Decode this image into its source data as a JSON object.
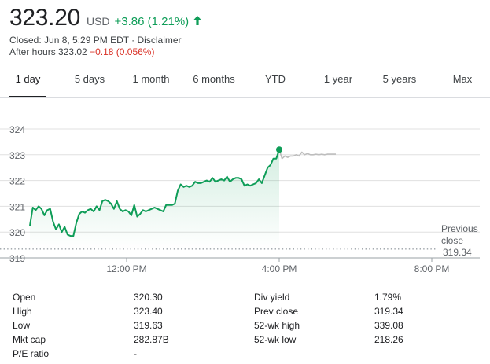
{
  "quote": {
    "price": "323.20",
    "currency": "USD",
    "change": "+3.86 (1.21%)",
    "closed_text": "Closed: Jun 8, 5:29 PM EDT · Disclaimer",
    "after_hours_label": "After hours 323.02",
    "after_hours_change": "−0.18 (0.056%)"
  },
  "tabs": [
    {
      "label": "1 day",
      "active": true
    },
    {
      "label": "5 days"
    },
    {
      "label": "1 month"
    },
    {
      "label": "6 months"
    },
    {
      "label": "YTD"
    },
    {
      "label": "1 year"
    },
    {
      "label": "5 years"
    },
    {
      "label": "Max"
    }
  ],
  "colors": {
    "up": "#0f9d58",
    "down": "#d93025",
    "after_hours_line": "#bdbdbd",
    "grid": "#e0e0e0"
  },
  "chart_data": {
    "type": "line",
    "y_ticks": [
      "324",
      "323",
      "322",
      "321",
      "320",
      "319"
    ],
    "ylim": [
      319,
      324
    ],
    "x_ticks": [
      "12:00 PM",
      "4:00 PM",
      "8:00 PM"
    ],
    "previous_close_label": "Previous close",
    "previous_close_value": "319.34",
    "previous_close": 319.34,
    "series": [
      {
        "values": [
          320.25,
          320.95,
          320.85,
          321.0,
          320.9,
          320.65,
          320.85,
          320.9,
          320.4,
          320.1,
          320.3,
          320.0,
          320.2,
          319.9,
          319.85,
          319.85,
          320.35,
          320.7,
          320.8,
          320.75,
          320.85,
          320.9,
          320.8,
          321.0,
          320.85,
          321.2,
          321.25,
          321.2,
          321.1,
          320.9,
          321.2,
          320.9,
          320.8,
          320.85,
          320.8,
          320.65,
          321.05,
          320.6,
          320.7,
          320.85,
          320.8,
          320.85,
          320.9,
          320.95,
          320.9,
          320.85,
          320.8,
          321.05,
          321.05,
          321.05,
          321.1,
          321.6,
          321.85,
          321.75,
          321.8,
          321.75,
          321.8,
          321.95,
          321.9,
          321.9,
          321.95,
          322.0,
          321.95,
          322.1,
          321.95,
          322.0,
          322.05,
          322.0,
          322.15,
          321.95,
          322.05,
          322.1,
          322.1,
          322.05,
          321.8,
          321.85,
          321.8,
          321.85,
          321.9,
          322.05,
          321.9,
          322.2,
          322.5,
          322.6,
          322.85,
          322.85,
          323.2
        ]
      },
      {
        "values": [
          323.2,
          322.85,
          322.95,
          322.9,
          322.95,
          322.95,
          323.0,
          322.95,
          323.1,
          323.0,
          323.05,
          323.0,
          323.0,
          323.02,
          323.0,
          323.02,
          323.0,
          323.02,
          323.02,
          323.02,
          323.02
        ]
      }
    ]
  },
  "stats": {
    "rows": [
      {
        "l1": "Open",
        "v1": "320.30",
        "l2": "Div yield",
        "v2": "1.79%"
      },
      {
        "l1": "High",
        "v1": "323.40",
        "l2": "Prev close",
        "v2": "319.34"
      },
      {
        "l1": "Low",
        "v1": "319.63",
        "l2": "52-wk high",
        "v2": "339.08"
      },
      {
        "l1": "Mkt cap",
        "v1": "282.87B",
        "l2": "52-wk low",
        "v2": "218.26"
      },
      {
        "l1": "P/E ratio",
        "v1": "-",
        "l2": "",
        "v2": ""
      }
    ]
  }
}
